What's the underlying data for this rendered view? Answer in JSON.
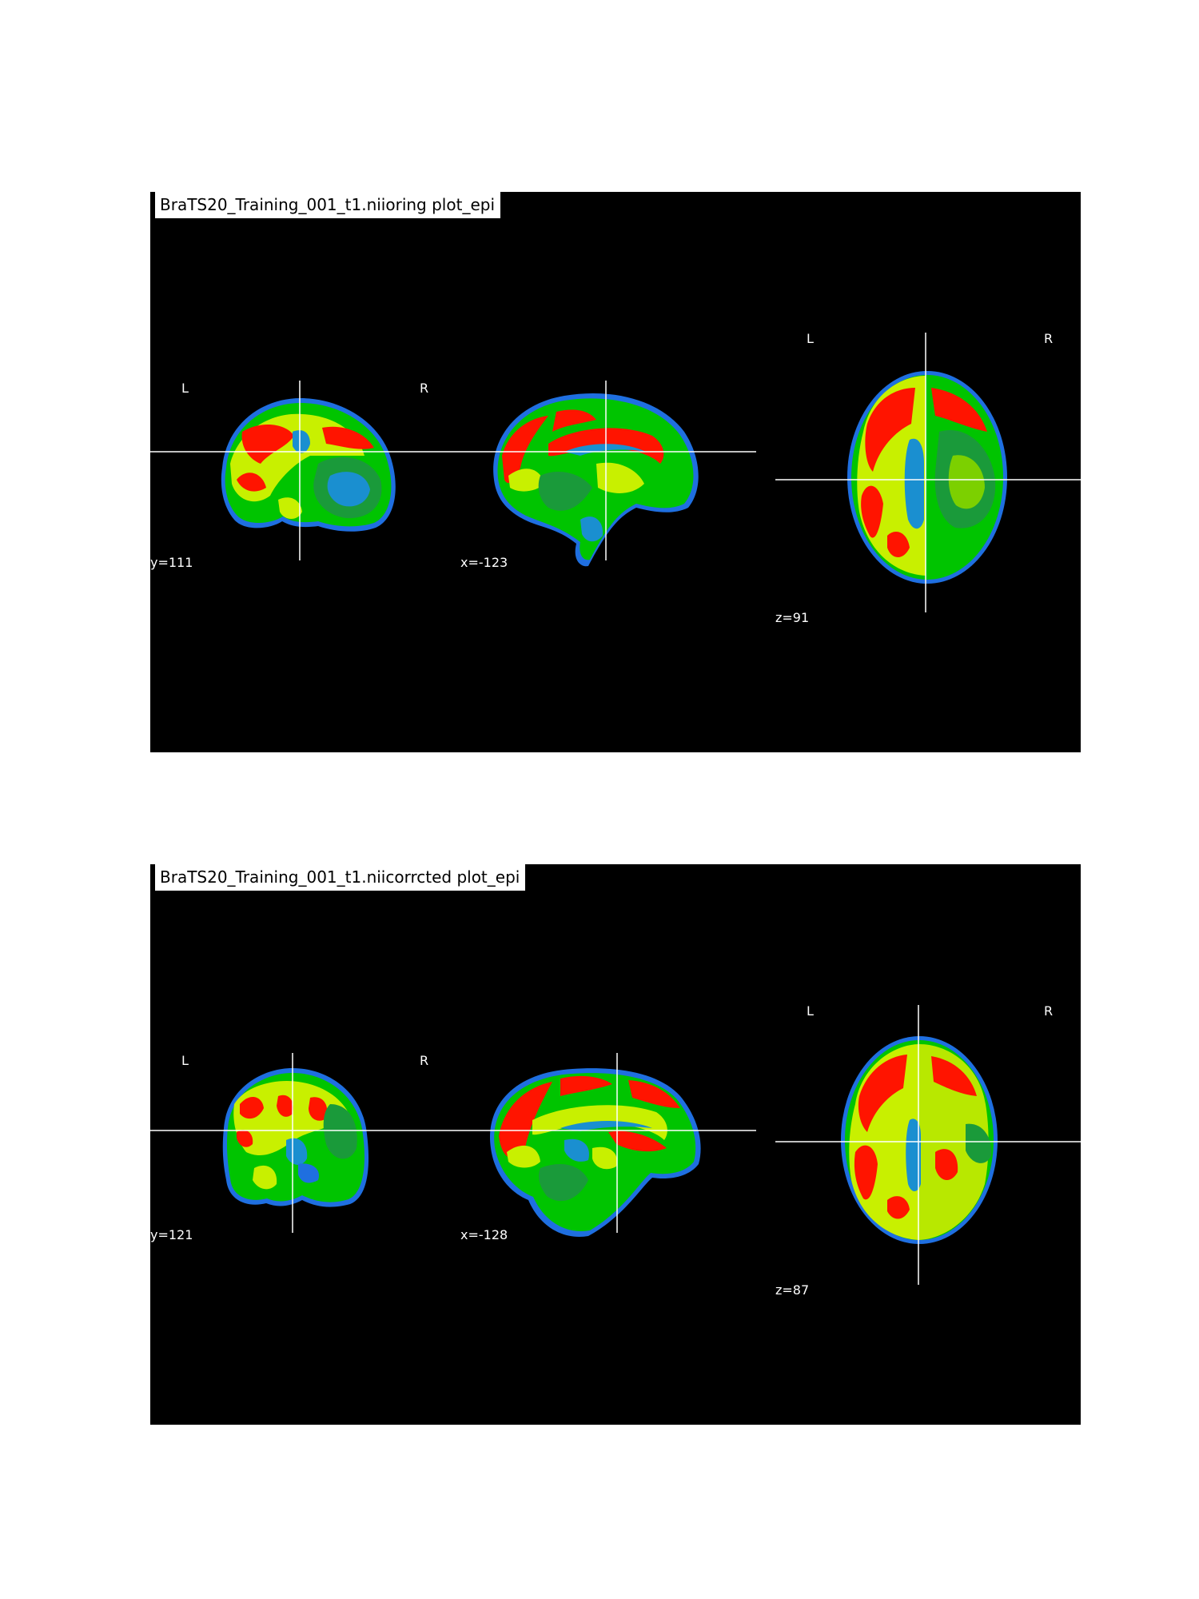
{
  "panels": [
    {
      "title": "BraTS20_Training_001_t1.niioring plot_epi",
      "views": {
        "coronal": {
          "left_label": "L",
          "right_label": "R",
          "coord": "y=111"
        },
        "sagittal": {
          "coord": "x=-123"
        },
        "axial": {
          "left_label": "L",
          "right_label": "R",
          "coord": "z=91"
        }
      }
    },
    {
      "title": "BraTS20_Training_001_t1.niicorrcted plot_epi",
      "views": {
        "coronal": {
          "left_label": "L",
          "right_label": "R",
          "coord": "y=121"
        },
        "sagittal": {
          "coord": "x=-128"
        },
        "axial": {
          "left_label": "L",
          "right_label": "R",
          "coord": "z=87"
        }
      }
    }
  ],
  "colormap": {
    "background": "#000000",
    "edge": "#1f6fe0",
    "low": "#00c400",
    "mid": "#c8f000",
    "high": "#ff1400",
    "csf": "#1a8fd0",
    "crosshair": "#ffffff"
  }
}
